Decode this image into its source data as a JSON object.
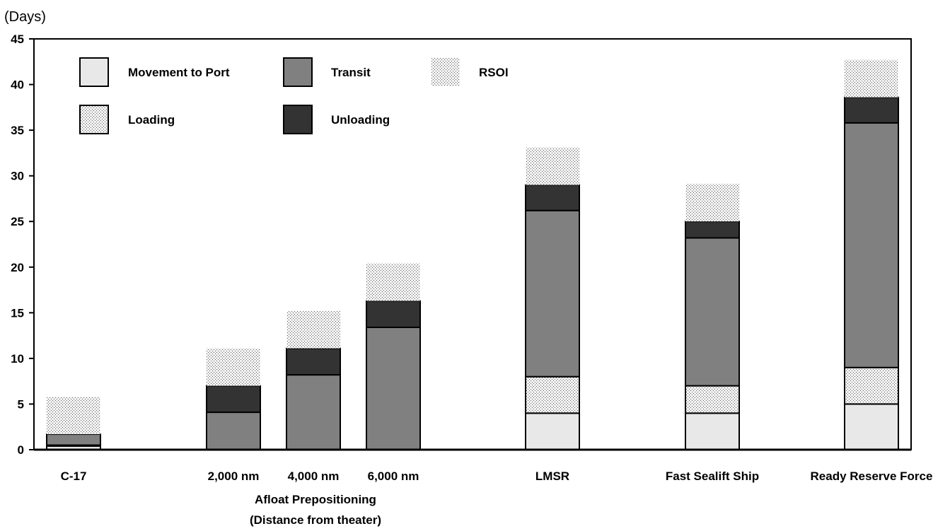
{
  "chart_data": {
    "type": "bar",
    "stacked": true,
    "ylabel": "(Days)",
    "ylim": [
      0,
      45
    ],
    "yticks": [
      0,
      5,
      10,
      15,
      20,
      25,
      30,
      35,
      40,
      45
    ],
    "grid": false,
    "legend_position": "top-left",
    "categories": [
      "C-17",
      "2,000 nm",
      "4,000 nm",
      "6,000 nm",
      "LMSR",
      "Fast Sealift Ship",
      "Ready Reserve Force"
    ],
    "group_label": [
      "Afloat Prepositioning",
      "(Distance from theater)"
    ],
    "series": [
      {
        "name": "Movement to Port",
        "key": "movement",
        "color": "#e8e8e8",
        "pattern": "solid",
        "values": [
          0.4,
          0,
          0,
          0,
          4,
          4,
          5
        ]
      },
      {
        "name": "Loading",
        "key": "loading",
        "color": "#d9d9d9",
        "pattern": "stipple",
        "values": [
          0.1,
          0,
          0,
          0,
          4,
          3,
          4
        ]
      },
      {
        "name": "Transit",
        "key": "transit",
        "color": "#808080",
        "pattern": "solid",
        "values": [
          1.2,
          4.1,
          8.2,
          13.4,
          18.2,
          16.2,
          26.8
        ]
      },
      {
        "name": "Unloading",
        "key": "unloading",
        "color": "#333333",
        "pattern": "solid",
        "values": [
          0,
          2.9,
          2.9,
          2.9,
          2.8,
          1.8,
          2.8
        ]
      },
      {
        "name": "RSOI",
        "key": "rsoi",
        "color": "#d9d9d9",
        "pattern": "stipple-open",
        "values": [
          4.1,
          4.1,
          4.1,
          4.1,
          4.1,
          4.1,
          4.1
        ]
      }
    ]
  }
}
